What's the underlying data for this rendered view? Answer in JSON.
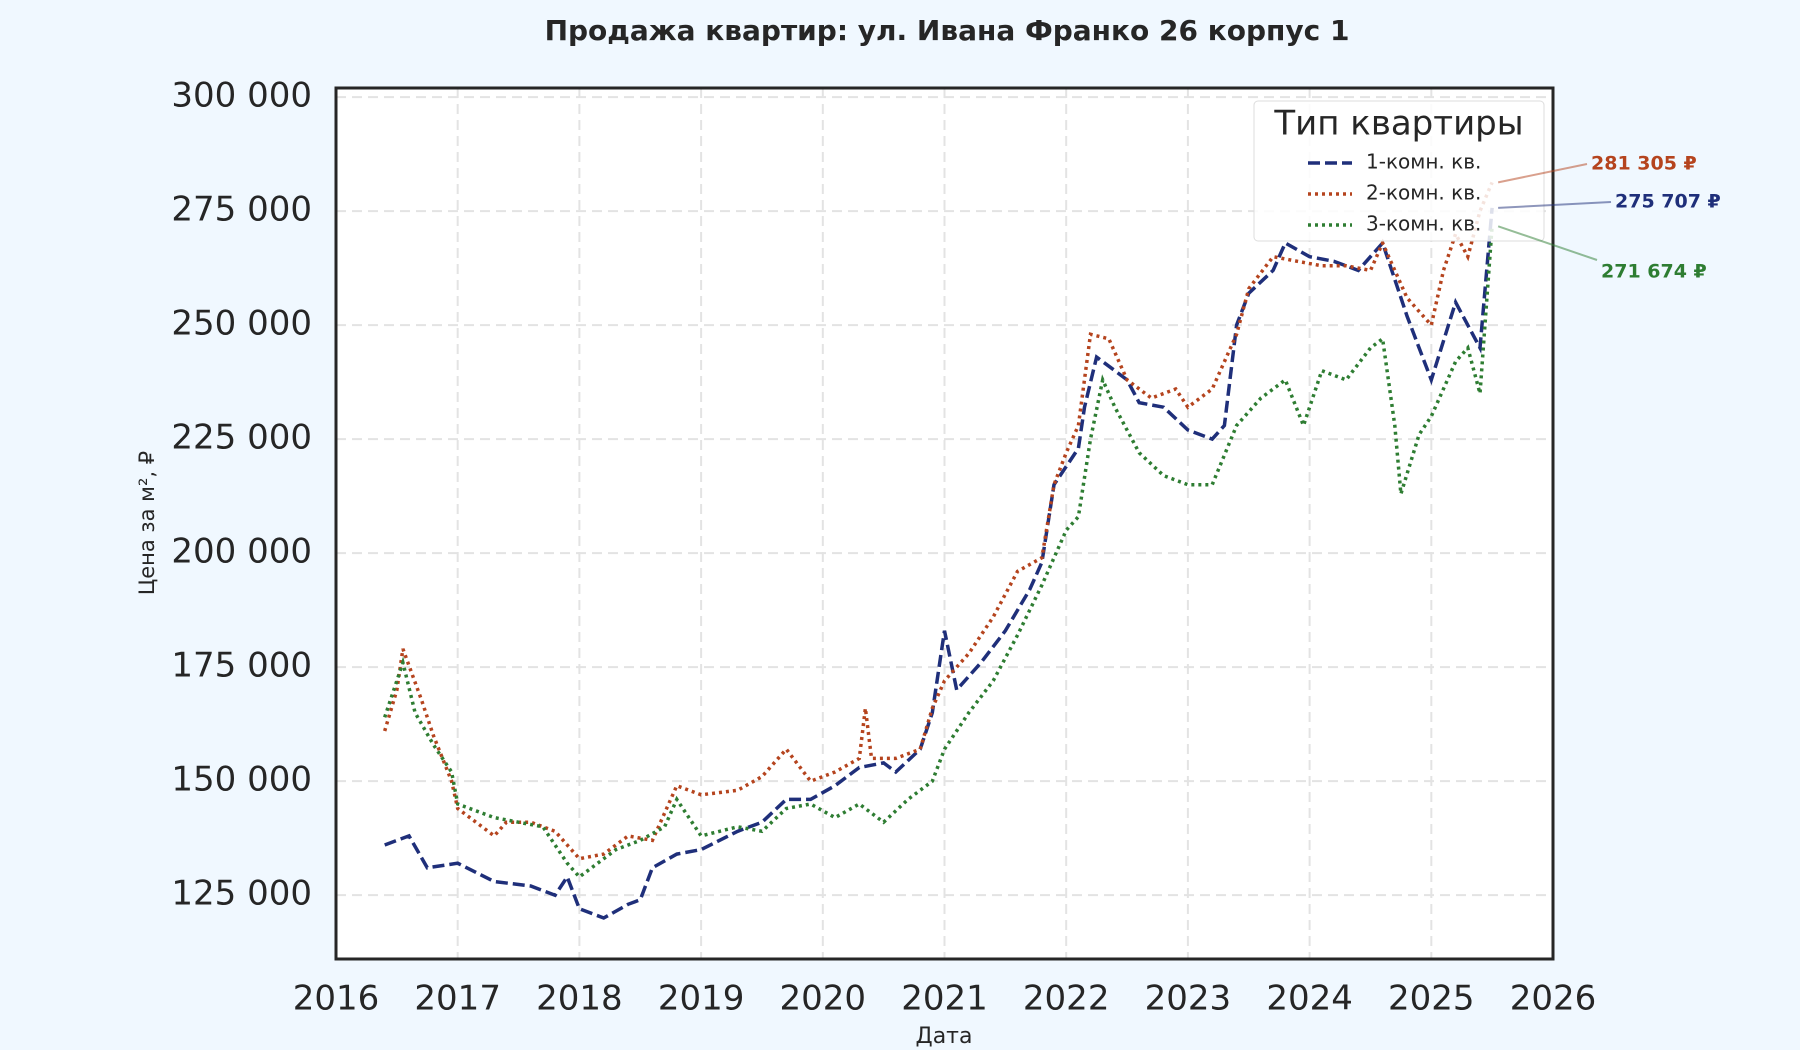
{
  "chart_data": {
    "type": "line",
    "title": "Продажа квартир: ул. Ивана Франко 26 корпус 1",
    "x_label": "Дата",
    "y_label": "Цена за м², ₽",
    "legend_title": "Тип квартиры",
    "legend": "upper right",
    "grid": true,
    "xlim": [
      2016,
      2026
    ],
    "xticks": [
      2016,
      2017,
      2018,
      2019,
      2020,
      2021,
      2022,
      2023,
      2024,
      2025,
      2026
    ],
    "ylim": [
      111000,
      302000
    ],
    "yticks": [
      {
        "value": 125000,
        "label": "125 000"
      },
      {
        "value": 150000,
        "label": "150 000"
      },
      {
        "value": 175000,
        "label": "175 000"
      },
      {
        "value": 200000,
        "label": "200 000"
      },
      {
        "value": 225000,
        "label": "225 000"
      },
      {
        "value": 250000,
        "label": "250 000"
      },
      {
        "value": 275000,
        "label": "275 000"
      },
      {
        "value": 300000,
        "label": "300 000"
      }
    ],
    "series": [
      {
        "name": "1-комн. кв.",
        "color": "#1f2f7a",
        "linestyle": "dashed",
        "x": [
          2016.4,
          2016.6,
          2016.75,
          2017.0,
          2017.3,
          2017.6,
          2017.8,
          2017.9,
          2018.0,
          2018.2,
          2018.4,
          2018.5,
          2018.6,
          2018.8,
          2019.0,
          2019.3,
          2019.5,
          2019.7,
          2019.9,
          2020.1,
          2020.3,
          2020.5,
          2020.6,
          2020.8,
          2020.9,
          2021.0,
          2021.1,
          2021.3,
          2021.5,
          2021.7,
          2021.8,
          2021.9,
          2022.1,
          2022.15,
          2022.25,
          2022.4,
          2022.5,
          2022.6,
          2022.8,
          2023.0,
          2023.2,
          2023.3,
          2023.4,
          2023.5,
          2023.7,
          2023.8,
          2024.0,
          2024.2,
          2024.4,
          2024.6,
          2024.8,
          2024.9,
          2025.0,
          2025.2,
          2025.4,
          2025.5
        ],
        "values": [
          136000,
          138000,
          131000,
          132000,
          128000,
          127000,
          125000,
          129000,
          122000,
          120000,
          123000,
          124000,
          131000,
          134000,
          135000,
          139000,
          141000,
          146000,
          146000,
          149000,
          153000,
          154000,
          152000,
          157000,
          165000,
          183000,
          170000,
          176000,
          183000,
          192000,
          198000,
          215000,
          223000,
          232000,
          243000,
          240000,
          238000,
          233000,
          232000,
          227000,
          225000,
          228000,
          250000,
          257000,
          262000,
          268000,
          265000,
          264000,
          262000,
          268000,
          252000,
          245000,
          238000,
          255000,
          245000,
          275707
        ],
        "value_labels": [
          null,
          null,
          null,
          null,
          null,
          null,
          null,
          null,
          null,
          null,
          null,
          null,
          null,
          null,
          null,
          null,
          null,
          null,
          null,
          null,
          null,
          null,
          null,
          null,
          null,
          null,
          null,
          null,
          null,
          null,
          null,
          null,
          null,
          null,
          null,
          null,
          null,
          null,
          null,
          null,
          null,
          null,
          null,
          null,
          null,
          null,
          null,
          null,
          null,
          null,
          null,
          null,
          null,
          null,
          null,
          "275 707 ₽"
        ]
      },
      {
        "name": "2-комн. кв.",
        "color": "#b5441e",
        "linestyle": "dotted",
        "x": [
          2016.4,
          2016.5,
          2016.55,
          2016.7,
          2016.8,
          2016.95,
          2017.0,
          2017.3,
          2017.4,
          2017.6,
          2017.8,
          2018.0,
          2018.2,
          2018.4,
          2018.6,
          2018.8,
          2019.0,
          2019.3,
          2019.5,
          2019.7,
          2019.9,
          2020.1,
          2020.3,
          2020.35,
          2020.4,
          2020.6,
          2020.8,
          2020.9,
          2021.0,
          2021.2,
          2021.4,
          2021.6,
          2021.8,
          2021.9,
          2022.0,
          2022.1,
          2022.2,
          2022.35,
          2022.5,
          2022.7,
          2022.9,
          2023.0,
          2023.2,
          2023.4,
          2023.5,
          2023.7,
          2023.9,
          2024.1,
          2024.3,
          2024.5,
          2024.6,
          2024.8,
          2024.9,
          2025.0,
          2025.1,
          2025.2,
          2025.3,
          2025.4,
          2025.5
        ],
        "values": [
          161000,
          170000,
          179000,
          168000,
          160000,
          150000,
          144000,
          138000,
          141000,
          141000,
          139000,
          133000,
          134000,
          138000,
          137000,
          149000,
          147000,
          148000,
          151000,
          157000,
          150000,
          152000,
          155000,
          166000,
          155000,
          155000,
          157000,
          166000,
          172000,
          178000,
          186000,
          196000,
          199000,
          215000,
          222000,
          228000,
          248000,
          247000,
          238000,
          234000,
          236000,
          232000,
          236000,
          248000,
          258000,
          265000,
          264000,
          263000,
          263000,
          262000,
          268000,
          256000,
          253000,
          250000,
          262000,
          270000,
          265000,
          275000,
          281305
        ],
        "value_labels": [
          null,
          null,
          null,
          null,
          null,
          null,
          null,
          null,
          null,
          null,
          null,
          null,
          null,
          null,
          null,
          null,
          null,
          null,
          null,
          null,
          null,
          null,
          null,
          null,
          null,
          null,
          null,
          null,
          null,
          null,
          null,
          null,
          null,
          null,
          null,
          null,
          null,
          null,
          null,
          null,
          null,
          null,
          null,
          null,
          null,
          null,
          null,
          null,
          null,
          null,
          null,
          null,
          null,
          null,
          null,
          null,
          null,
          null,
          "281 305 ₽"
        ]
      },
      {
        "name": "3-комн. кв.",
        "color": "#2e7d32",
        "linestyle": "dotted",
        "x": [
          2016.4,
          2016.55,
          2016.65,
          2016.8,
          2016.95,
          2017.0,
          2017.3,
          2017.5,
          2017.7,
          2017.9,
          2018.0,
          2018.3,
          2018.5,
          2018.7,
          2018.8,
          2019.0,
          2019.3,
          2019.5,
          2019.7,
          2019.9,
          2020.1,
          2020.3,
          2020.5,
          2020.7,
          2020.9,
          2021.0,
          2021.2,
          2021.4,
          2021.6,
          2021.8,
          2022.0,
          2022.1,
          2022.2,
          2022.3,
          2022.4,
          2022.6,
          2022.8,
          2023.0,
          2023.2,
          2023.4,
          2023.6,
          2023.8,
          2023.95,
          2024.1,
          2024.3,
          2024.5,
          2024.6,
          2024.7,
          2024.75,
          2024.9,
          2025.0,
          2025.2,
          2025.3,
          2025.4,
          2025.5
        ],
        "values": [
          164000,
          176000,
          165000,
          158000,
          152000,
          145000,
          142000,
          141000,
          140000,
          132000,
          129000,
          135000,
          137000,
          140000,
          146000,
          138000,
          140000,
          139000,
          144000,
          145000,
          142000,
          145000,
          141000,
          146000,
          150000,
          157000,
          165000,
          172000,
          182000,
          193000,
          205000,
          208000,
          225000,
          238000,
          232000,
          222000,
          217000,
          215000,
          215000,
          228000,
          234000,
          238000,
          228000,
          240000,
          238000,
          245000,
          247000,
          228000,
          213000,
          226000,
          230000,
          242000,
          245000,
          235000,
          271674
        ],
        "value_labels": [
          null,
          null,
          null,
          null,
          null,
          null,
          null,
          null,
          null,
          null,
          null,
          null,
          null,
          null,
          null,
          null,
          null,
          null,
          null,
          null,
          null,
          null,
          null,
          null,
          null,
          null,
          null,
          null,
          null,
          null,
          null,
          null,
          null,
          null,
          null,
          null,
          null,
          null,
          null,
          null,
          null,
          null,
          null,
          null,
          null,
          null,
          null,
          null,
          null,
          null,
          null,
          null,
          null,
          null,
          "271 674 ₽"
        ]
      }
    ]
  }
}
